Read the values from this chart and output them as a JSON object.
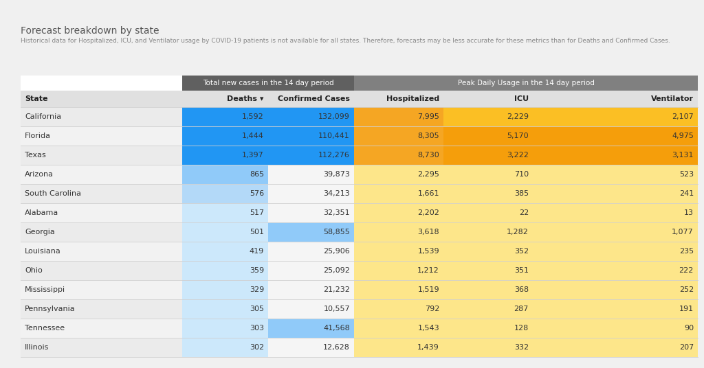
{
  "title": "Forecast breakdown by state",
  "subtitle": "Historical data for Hospitalized, ICU, and Ventilator usage by COVID-19 patients is not available for all states. Therefore, forecasts may be less accurate for these metrics than for Deaths and Confirmed Cases.",
  "group_header_1": "Total new cases in the 14 day period",
  "group_header_2": "Peak Daily Usage in the 14 day period",
  "col_headers": [
    "State",
    "Deaths ▾",
    "Confirmed Cases",
    "Hospitalized",
    "ICU",
    "Ventilator"
  ],
  "states": [
    "California",
    "Florida",
    "Texas",
    "Arizona",
    "South Carolina",
    "Alabama",
    "Georgia",
    "Louisiana",
    "Ohio",
    "Mississippi",
    "Pennsylvania",
    "Tennessee",
    "Illinois"
  ],
  "deaths": [
    1592,
    1444,
    1397,
    865,
    576,
    517,
    501,
    419,
    359,
    329,
    305,
    303,
    302
  ],
  "confirmed": [
    132099,
    110441,
    112276,
    39873,
    34213,
    32351,
    58855,
    25906,
    25092,
    21232,
    10557,
    41568,
    12628
  ],
  "hosp": [
    7995,
    8305,
    8730,
    2295,
    1661,
    2202,
    3618,
    1539,
    1212,
    1519,
    792,
    1543,
    1439
  ],
  "icu": [
    2229,
    5170,
    3222,
    710,
    385,
    22,
    1282,
    352,
    351,
    368,
    287,
    128,
    332
  ],
  "vent": [
    2107,
    4975,
    3131,
    523,
    241,
    13,
    1077,
    235,
    222,
    252,
    191,
    90,
    207
  ],
  "bg_color": "#f0f0f0",
  "header_group_bg_1": "#606060",
  "header_group_bg_2": "#808080",
  "header_group_fg": "#ffffff",
  "col_header_bg": "#e0e0e0",
  "col_header_fg": "#222222",
  "state_col_bg": "#ebebeb",
  "deaths_colors": [
    "#2196f3",
    "#2196f3",
    "#2196f3",
    "#90caf9",
    "#b3d9f8",
    "#cce8fb",
    "#cce8fb",
    "#cce8fb",
    "#cce8fb",
    "#cce8fb",
    "#cce8fb",
    "#cce8fb",
    "#cce8fb"
  ],
  "confirmed_colors": [
    "#2196f3",
    "#2196f3",
    "#2196f3",
    "#f5f5f5",
    "#f5f5f5",
    "#f5f5f5",
    "#90caf9",
    "#f5f5f5",
    "#f5f5f5",
    "#f5f5f5",
    "#f5f5f5",
    "#90caf9",
    "#f5f5f5"
  ],
  "hosp_colors": [
    "#f5a623",
    "#f5a623",
    "#f5a623",
    "#fde68a",
    "#fde68a",
    "#fde68a",
    "#fde68a",
    "#fde68a",
    "#fde68a",
    "#fde68a",
    "#fde68a",
    "#fde68a",
    "#fde68a"
  ],
  "icu_colors": [
    "#fbbf24",
    "#f59e0b",
    "#f59e0b",
    "#fde68a",
    "#fde68a",
    "#fde68a",
    "#fde68a",
    "#fde68a",
    "#fde68a",
    "#fde68a",
    "#fde68a",
    "#fde68a",
    "#fde68a"
  ],
  "vent_colors": [
    "#fbbf24",
    "#f59e0b",
    "#f59e0b",
    "#fde68a",
    "#fde68a",
    "#fde68a",
    "#fde68a",
    "#fde68a",
    "#fde68a",
    "#fde68a",
    "#fde68a",
    "#fde68a",
    "#fde68a"
  ],
  "text_color_dark": "#444444",
  "separator_color": "#d0d0d0"
}
